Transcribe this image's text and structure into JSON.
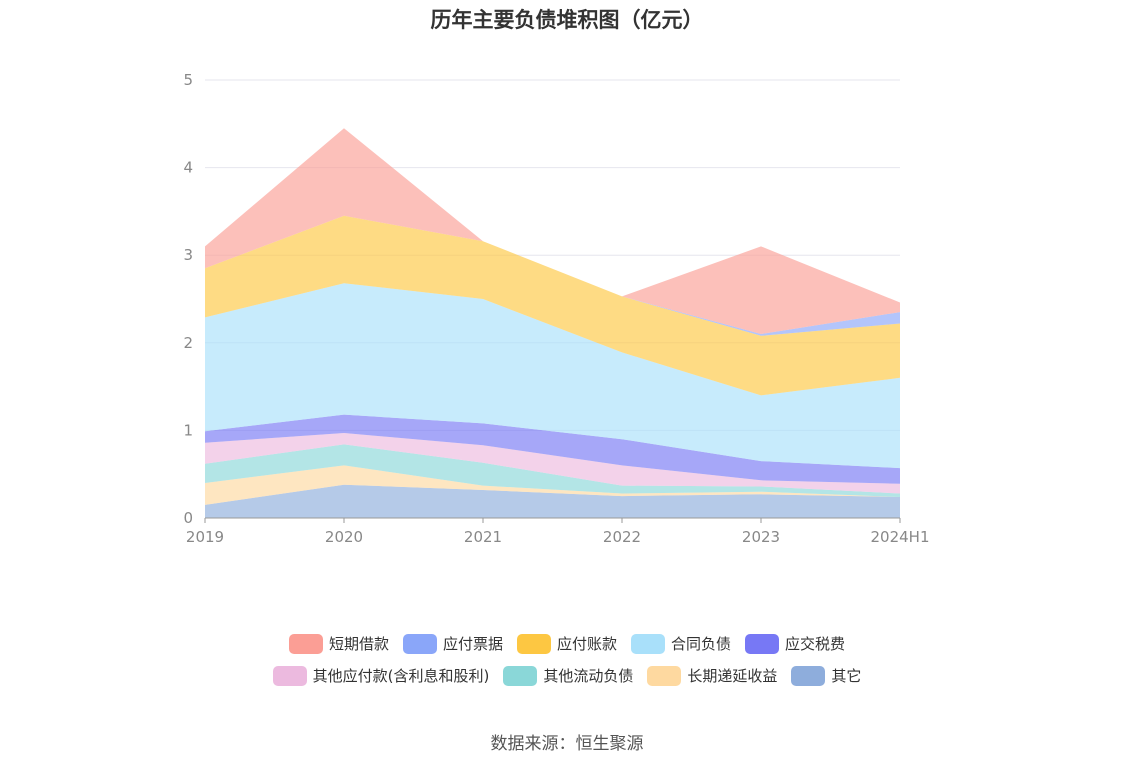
{
  "chart_data": {
    "type": "area",
    "stacked": true,
    "title": "历年主要负债堆积图（亿元）",
    "categories": [
      "2019",
      "2020",
      "2021",
      "2022",
      "2023",
      "2024H1"
    ],
    "ylim": [
      0,
      5
    ],
    "yticks": [
      "0",
      "1",
      "2",
      "3",
      "4",
      "5"
    ],
    "grid": true,
    "legend_position": "bottom",
    "series": [
      {
        "name": "其它",
        "color": "#8eaddc",
        "values": [
          0.15,
          0.38,
          0.32,
          0.25,
          0.27,
          0.24
        ]
      },
      {
        "name": "长期递延收益",
        "color": "#fed9a0",
        "values": [
          0.25,
          0.22,
          0.05,
          0.03,
          0.03,
          0.0
        ]
      },
      {
        "name": "其他流动负债",
        "color": "#8ad7d8",
        "values": [
          0.22,
          0.24,
          0.26,
          0.09,
          0.06,
          0.04
        ]
      },
      {
        "name": "其他应付款(含利息和股利)",
        "color": "#ecbadf",
        "values": [
          0.24,
          0.13,
          0.2,
          0.23,
          0.07,
          0.11
        ]
      },
      {
        "name": "应交税费",
        "color": "#7778f5",
        "values": [
          0.13,
          0.21,
          0.25,
          0.3,
          0.22,
          0.18
        ]
      },
      {
        "name": "合同负债",
        "color": "#a9e0fa",
        "values": [
          1.3,
          1.5,
          1.42,
          0.99,
          0.75,
          1.03
        ]
      },
      {
        "name": "应付账款",
        "color": "#fdc742",
        "values": [
          0.56,
          0.77,
          0.66,
          0.64,
          0.68,
          0.62
        ]
      },
      {
        "name": "应付票据",
        "color": "#8aa6f9",
        "values": [
          0.0,
          0.0,
          0.0,
          0.0,
          0.02,
          0.13
        ]
      },
      {
        "name": "短期借款",
        "color": "#fb9e95",
        "values": [
          0.25,
          1.0,
          0.0,
          0.0,
          1.0,
          0.11
        ]
      }
    ],
    "legend_rows": [
      [
        "短期借款",
        "应付票据",
        "应付账款",
        "合同负债",
        "应交税费"
      ],
      [
        "其他应付款(含利息和股利)",
        "其他流动负债",
        "长期递延收益",
        "其它"
      ]
    ]
  },
  "source": "数据来源：恒生聚源"
}
